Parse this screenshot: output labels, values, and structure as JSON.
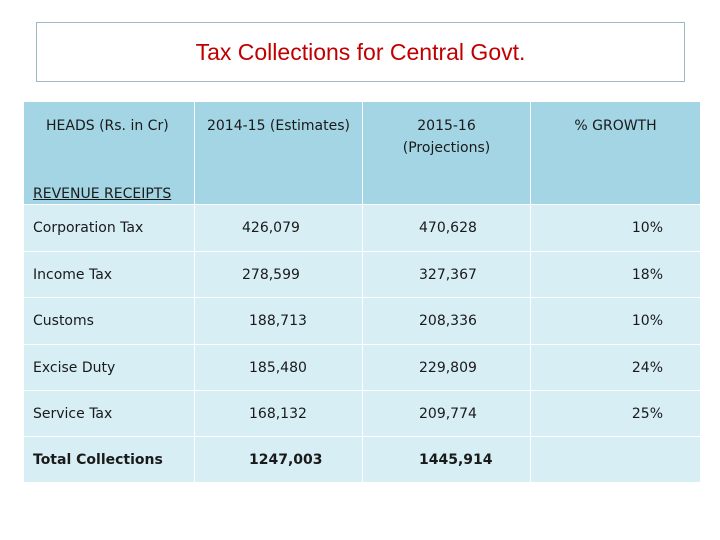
{
  "title": "Tax Collections for Central Govt.",
  "headers": [
    "HEADS (Rs. in Cr)",
    "2014-15 (Estimates)",
    "2015-16",
    "(Projections)",
    "% GROWTH"
  ],
  "section_label": "REVENUE RECEIPTS",
  "rows": [
    {
      "head": "Corporation Tax",
      "y2014": "426,079",
      "y2015": "470,628",
      "growth": "10%"
    },
    {
      "head": "Income Tax",
      "y2014": "278,599",
      "y2015": "327,367",
      "growth": "18%"
    },
    {
      "head": "Customs",
      "y2014": "188,713",
      "y2015": "208,336",
      "growth": "10%"
    },
    {
      "head": "Excise Duty",
      "y2014": "185,480",
      "y2015": "229,809",
      "growth": "24%"
    },
    {
      "head": "Service Tax",
      "y2014": "168,132",
      "y2015": "209,774",
      "growth": "25%"
    },
    {
      "head": "Total Collections",
      "y2014": "1247,003",
      "y2015": "1445,914",
      "growth": ""
    }
  ],
  "colors": {
    "title": "#c00000",
    "header_fill": "#a3d5e4",
    "row_fill": "#d7eef4",
    "border": "#9db9c9"
  }
}
